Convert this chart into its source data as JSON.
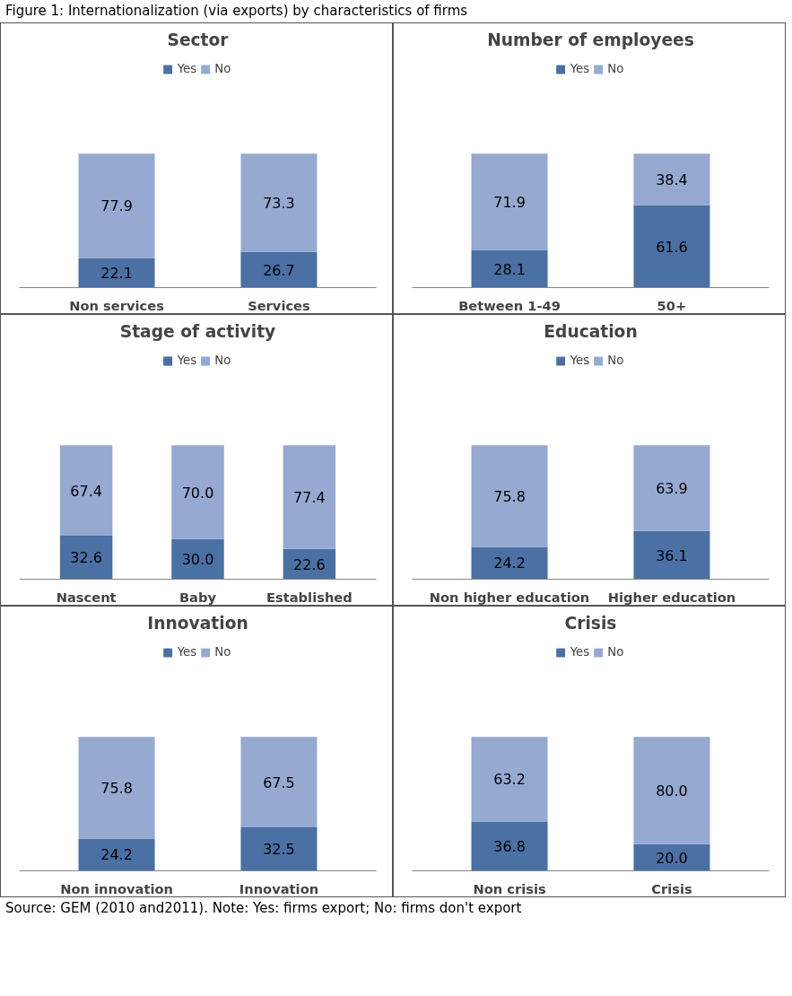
{
  "chart_data": [
    {
      "type": "bar",
      "stacked": true,
      "title": "Sector",
      "categories": [
        "Non services",
        "Services"
      ],
      "series": [
        {
          "name": "Yes",
          "color": "#4a70a4",
          "values": [
            22.1,
            26.7
          ]
        },
        {
          "name": "No",
          "color": "#95a9d1",
          "values": [
            77.9,
            73.3
          ]
        }
      ],
      "data_labels": true,
      "legend": "top",
      "grid": false,
      "tick_labels": "x",
      "annotations": [
        "Figure 1: Internationalization (via exports) by characteristics of firms"
      ]
    },
    {
      "type": "bar",
      "stacked": true,
      "title": "Number of employees",
      "categories": [
        "Between 1-49",
        "50+"
      ],
      "series": [
        {
          "name": "Yes",
          "color": "#4a70a4",
          "values": [
            28.1,
            61.6
          ]
        },
        {
          "name": "No",
          "color": "#95a9d1",
          "values": [
            71.9,
            38.4
          ]
        }
      ],
      "data_labels": true,
      "legend": "top",
      "grid": false,
      "tick_labels": "x"
    },
    {
      "type": "bar",
      "stacked": true,
      "title": "Stage of activity",
      "categories": [
        "Nascent",
        "Baby",
        "Established"
      ],
      "series": [
        {
          "name": "Yes",
          "color": "#4a70a4",
          "values": [
            32.6,
            30.0,
            22.6
          ],
          "value_labels": [
            "32.6",
            "30.0",
            "22.6"
          ]
        },
        {
          "name": "No",
          "color": "#95a9d1",
          "values": [
            67.4,
            70.0,
            77.4
          ],
          "value_labels": [
            "67.4",
            "70.0",
            "77.4"
          ]
        }
      ],
      "legend": "top",
      "grid": false,
      "tick_labels": "x"
    },
    {
      "type": "bar",
      "stacked": true,
      "title": "Education",
      "categories": [
        "Non higher education",
        "Higher education"
      ],
      "series": [
        {
          "name": "Yes",
          "color": "#4a70a4",
          "values": [
            24.2,
            36.1
          ]
        },
        {
          "name": "No",
          "color": "#95a9d1",
          "values": [
            75.8,
            63.9
          ]
        }
      ],
      "data_labels": true,
      "legend": "top",
      "grid": false,
      "tick_labels": "x"
    },
    {
      "type": "bar",
      "stacked": true,
      "title": "Innovation",
      "categories": [
        "Non innovation",
        "Innovation"
      ],
      "series": [
        {
          "name": "Yes",
          "color": "#4a70a4",
          "values": [
            24.2,
            32.5
          ]
        },
        {
          "name": "No",
          "color": "#95a9d1",
          "values": [
            75.8,
            67.5
          ]
        }
      ],
      "data_labels": true,
      "legend": "top",
      "grid": false,
      "tick_labels": "x"
    },
    {
      "type": "bar",
      "stacked": true,
      "title": "Crisis",
      "categories": [
        "Non crisis",
        "Crisis"
      ],
      "series": [
        {
          "name": "Yes",
          "color": "#4a70a4",
          "values": [
            36.8,
            20.0
          ],
          "value_labels": [
            "36.8",
            "20.0"
          ]
        },
        {
          "name": "No",
          "color": "#95a9d1",
          "values": [
            63.2,
            80.0
          ],
          "value_labels": [
            "63.2",
            "80.0"
          ]
        }
      ],
      "legend": "top",
      "grid": false,
      "tick_labels": "x",
      "annotations": [
        "Source: GEM (2010 and2011). Note: Yes: firms export; No: firms don't export"
      ]
    }
  ]
}
